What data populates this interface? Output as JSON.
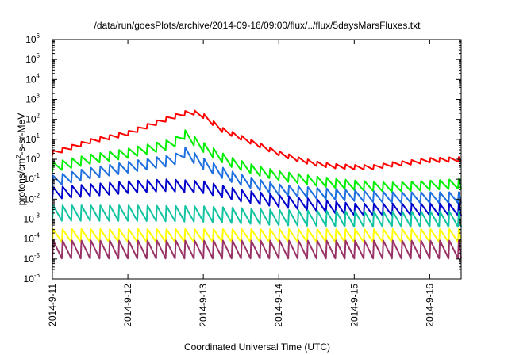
{
  "chart_data": {
    "type": "line",
    "title": "/data/run/goesPlots/archive/2014-09-16/09:00/flux/../flux/5daysMarsFluxes.txt",
    "xlabel": "Coordinated Universal Time (UTC)",
    "ylabel": "protons/cm2-s-sr-MeV",
    "ylabel_parts": {
      "pre": "protons/cm",
      "sup": "2",
      "post": "-s-sr-MeV"
    },
    "yscale": "log",
    "xlim": [
      "2014-09-11 00:00",
      "2014-09-16 10:00"
    ],
    "ylim": [
      1e-06,
      1000000.0
    ],
    "x_ticks": [
      "2014-9-11",
      "2014-9-12",
      "2014-9-13",
      "2014-9-14",
      "2014-9-15",
      "2014-9-16"
    ],
    "y_ticks": [
      {
        "base": "10",
        "exp": "-6"
      },
      {
        "base": "10",
        "exp": "-5"
      },
      {
        "base": "10",
        "exp": "-4"
      },
      {
        "base": "10",
        "exp": "-3"
      },
      {
        "base": "10",
        "exp": "-2"
      },
      {
        "base": "10",
        "exp": "-1"
      },
      {
        "base": "10",
        "exp": "0"
      },
      {
        "base": "10",
        "exp": "1"
      },
      {
        "base": "10",
        "exp": "2"
      },
      {
        "base": "10",
        "exp": "3"
      },
      {
        "base": "10",
        "exp": "4"
      },
      {
        "base": "10",
        "exp": "5"
      },
      {
        "base": "10",
        "exp": "6"
      }
    ],
    "grid": false,
    "legend": "none",
    "series": [
      {
        "color": "#ff0000",
        "x": [
          "2014-09-11 00:00",
          "2014-09-11 12:00",
          "2014-09-12 00:00",
          "2014-09-12 12:00",
          "2014-09-12 20:00",
          "2014-09-13 00:00",
          "2014-09-13 06:00",
          "2014-09-13 12:00",
          "2014-09-13 18:00",
          "2014-09-14 00:00",
          "2014-09-14 06:00",
          "2014-09-14 12:00",
          "2014-09-14 18:00",
          "2014-09-15 00:00",
          "2014-09-15 06:00",
          "2014-09-15 12:00",
          "2014-09-15 18:00",
          "2014-09-16 00:00",
          "2014-09-16 10:00"
        ],
        "y": [
          2,
          8,
          20,
          100,
          250,
          150,
          30,
          12,
          5,
          2,
          1,
          0.6,
          0.45,
          0.4,
          0.4,
          0.55,
          0.7,
          0.9,
          1.0
        ],
        "sawtooth_factor": 1.7
      },
      {
        "color": "#00ee00",
        "x": [
          "2014-09-11 00:00",
          "2014-09-11 12:00",
          "2014-09-12 00:00",
          "2014-09-12 12:00",
          "2014-09-12 17:00",
          "2014-09-12 17:30",
          "2014-09-13 00:00",
          "2014-09-13 08:00",
          "2014-09-13 16:00",
          "2014-09-14 00:00",
          "2014-09-14 12:00",
          "2014-09-15 00:00",
          "2014-09-15 12:00",
          "2014-09-16 00:00",
          "2014-09-16 10:00"
        ],
        "y": [
          0.4,
          1,
          2,
          5,
          10,
          20,
          4,
          0.8,
          0.3,
          0.15,
          0.08,
          0.05,
          0.04,
          0.05,
          0.06
        ],
        "sawtooth_factor": 3
      },
      {
        "color": "#1e6fe0",
        "x": [
          "2014-09-11 00:00",
          "2014-09-11 12:00",
          "2014-09-12 00:00",
          "2014-09-12 12:00",
          "2014-09-12 17:00",
          "2014-09-12 17:30",
          "2014-09-13 00:00",
          "2014-09-13 08:00",
          "2014-09-13 16:00",
          "2014-09-14 00:00",
          "2014-09-14 12:00",
          "2014-09-15 00:00",
          "2014-09-15 12:00",
          "2014-09-16 00:00",
          "2014-09-16 10:00"
        ],
        "y": [
          0.08,
          0.2,
          0.4,
          0.8,
          1.2,
          2.5,
          0.6,
          0.15,
          0.06,
          0.03,
          0.02,
          0.015,
          0.012,
          0.012,
          0.012
        ],
        "sawtooth_factor": 3.5
      },
      {
        "color": "#0000cc",
        "x": [
          "2014-09-11 00:00",
          "2014-09-12 00:00",
          "2014-09-12 12:00",
          "2014-09-13 00:00",
          "2014-09-13 12:00",
          "2014-09-14 00:00",
          "2014-09-14 12:00",
          "2014-09-15 00:00",
          "2014-09-16 00:00",
          "2014-09-16 10:00"
        ],
        "y": [
          0.02,
          0.04,
          0.05,
          0.04,
          0.015,
          0.008,
          0.005,
          0.003,
          0.003,
          0.003
        ],
        "sawtooth_factor": 4
      },
      {
        "color": "#11c3a0",
        "x": [
          "2014-09-11 00:00",
          "2014-09-12 00:00",
          "2014-09-13 00:00",
          "2014-09-14 00:00",
          "2014-09-15 00:00",
          "2014-09-16 00:00",
          "2014-09-16 10:00"
        ],
        "y": [
          0.002,
          0.002,
          0.0018,
          0.0012,
          0.001,
          0.001,
          0.001
        ],
        "sawtooth_factor": 6
      },
      {
        "color": "#ffff00",
        "x": [
          "2014-09-11 00:00",
          "2014-09-16 10:00"
        ],
        "y": [
          0.00015,
          0.00015
        ],
        "sawtooth_factor": 4.5
      },
      {
        "color": "#993366",
        "x": [
          "2014-09-11 00:00",
          "2014-09-16 10:00"
        ],
        "y": [
          3e-05,
          3e-05
        ],
        "sawtooth_factor": 8
      }
    ]
  }
}
